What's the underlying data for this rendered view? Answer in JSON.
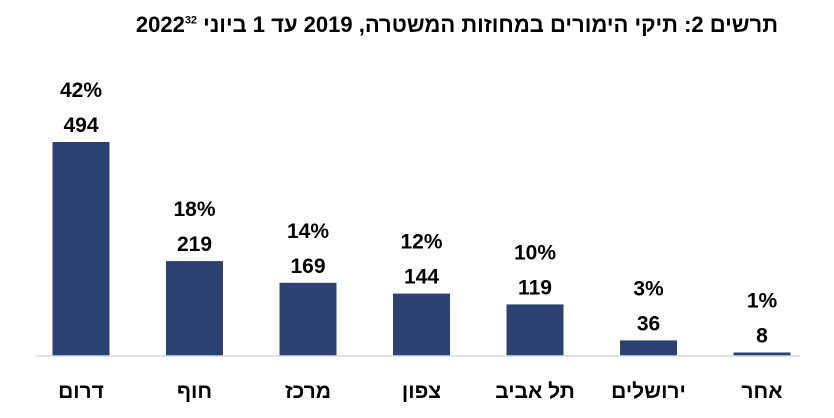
{
  "title": "תרשים 2: תיקי הימורים במחוזות המשטרה, 2019 עד 1 ביוני 2022",
  "footnote_ref": "32",
  "chart_data": {
    "type": "bar",
    "title": "תרשים 2: תיקי הימורים במחוזות המשטרה, 2019 עד 1 ביוני 2022",
    "categories": [
      "דרום",
      "חוף",
      "מרכז",
      "צפון",
      "תל אביב",
      "ירושלים",
      "אחר"
    ],
    "values": [
      494,
      219,
      169,
      144,
      119,
      36,
      8
    ],
    "percent_labels": [
      "42%",
      "18%",
      "14%",
      "12%",
      "10%",
      "3%",
      "1%"
    ],
    "xlabel": "",
    "ylabel": "",
    "ylim": [
      0,
      500
    ],
    "grid": false,
    "legend": "none",
    "bar_color": "#2B4172",
    "axis_color": "#D9D9D9"
  }
}
